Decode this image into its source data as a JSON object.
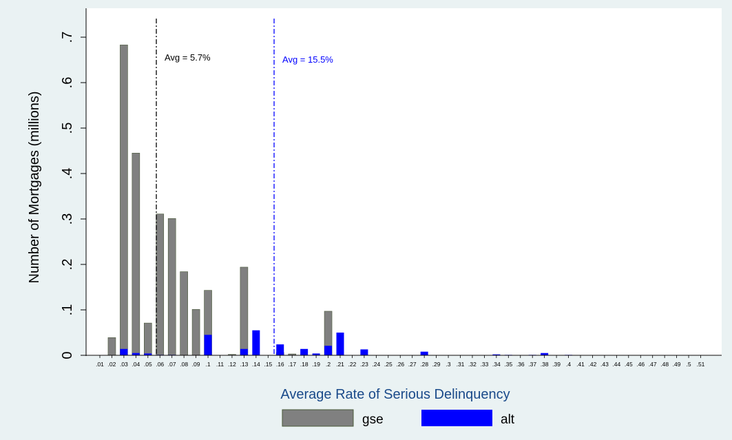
{
  "chart_data": {
    "type": "bar",
    "xlabel": "Average Rate of Serious Delinquency",
    "ylabel": "Number of Mortgages (millions)",
    "ylim": [
      0,
      0.7
    ],
    "yticks": [
      0,
      0.1,
      0.2,
      0.3,
      0.4,
      0.5,
      0.6,
      0.7
    ],
    "ytick_labels": [
      "0",
      ".1",
      ".2",
      ".3",
      ".4",
      ".5",
      ".6",
      ".7"
    ],
    "categories": [
      ".01",
      ".02",
      ".03",
      ".04",
      ".05",
      ".06",
      ".07",
      ".08",
      ".09",
      ".1",
      ".11",
      ".12",
      ".13",
      ".14",
      ".15",
      ".16",
      ".17",
      ".18",
      ".19",
      ".2",
      ".21",
      ".22",
      ".23",
      ".24",
      ".25",
      ".26",
      ".27",
      ".28",
      ".29",
      ".3",
      ".31",
      ".32",
      ".33",
      ".34",
      ".35",
      ".36",
      ".37",
      ".38",
      ".39",
      ".4",
      ".41",
      ".42",
      ".43",
      ".44",
      ".45",
      ".46",
      ".47",
      ".48",
      ".49",
      ".5",
      ".51"
    ],
    "series": [
      {
        "name": "gse",
        "color": "#808080",
        "values": [
          0,
          0.039,
          0.683,
          0.445,
          0.071,
          0.311,
          0.301,
          0.184,
          0.101,
          0.143,
          0,
          0.002,
          0.194,
          0,
          0,
          0.006,
          0.003,
          0,
          0,
          0.097,
          0,
          0,
          0,
          0,
          0,
          0,
          0,
          0,
          0,
          0,
          0,
          0,
          0,
          0,
          0,
          0,
          0,
          0,
          0,
          0,
          0,
          0,
          0,
          0,
          0,
          0,
          0,
          0,
          0,
          0,
          0
        ]
      },
      {
        "name": "alt",
        "color": "#0000ff",
        "values": [
          0,
          0,
          0.014,
          0.005,
          0.004,
          0.001,
          0.001,
          0,
          0,
          0.045,
          0,
          0,
          0.014,
          0.055,
          0,
          0.024,
          0,
          0.014,
          0.004,
          0.021,
          0.05,
          0,
          0.013,
          0,
          0,
          0,
          0,
          0.008,
          0,
          0,
          0,
          0,
          0,
          0.002,
          0.001,
          0,
          0.001,
          0.005,
          0,
          0.001,
          0,
          0,
          0,
          0,
          0,
          0,
          0,
          0,
          0,
          0,
          0
        ]
      }
    ],
    "reference_lines": [
      {
        "x": 0.057,
        "label": "Avg = 5.7%",
        "color": "#000000",
        "style": "dash-dot"
      },
      {
        "x": 0.155,
        "label": "Avg = 15.5%",
        "color": "#0000ff",
        "style": "dash-dot"
      }
    ],
    "legend": {
      "position": "bottom",
      "entries": [
        "gse",
        "alt"
      ]
    },
    "grid": false
  }
}
